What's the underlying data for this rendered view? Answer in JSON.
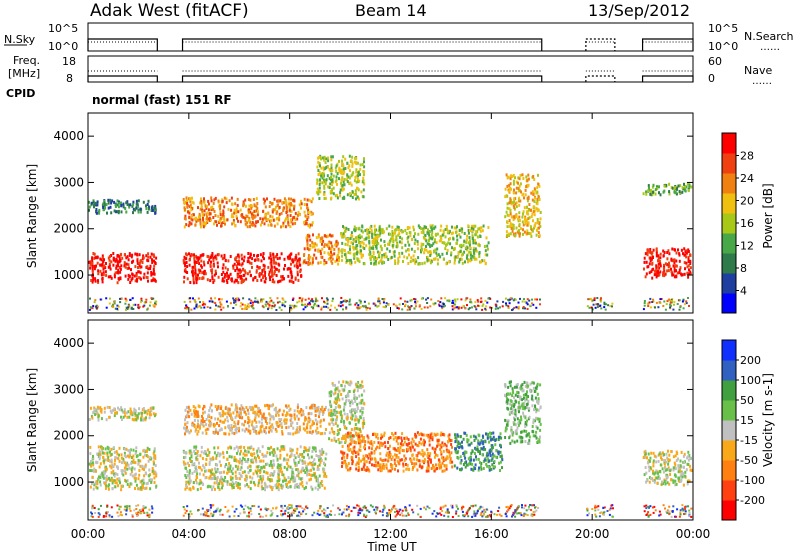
{
  "header": {
    "station": "Adak West (fitACF)",
    "beam": "Beam 14",
    "date": "13/Sep/2012",
    "mode": "normal (fast) 151 RF"
  },
  "chart_data": [
    {
      "type": "line",
      "id": "noise",
      "ylabel_left": "N.Sky",
      "ylabel_right": "N.Search",
      "ticks_left": [
        "10^5",
        "10^0"
      ],
      "ticks_right": [
        "10^5",
        "10^0"
      ],
      "legend_right": "……",
      "operating_intervals_ut": [
        [
          0.0,
          2.75
        ],
        [
          3.75,
          18.0
        ],
        [
          19.75,
          20.9
        ],
        [
          22.0,
          24.0
        ]
      ]
    },
    {
      "type": "line",
      "id": "freq-nave",
      "ylabel_left_lines": [
        "Freq.",
        "[MHz]"
      ],
      "ylabel_left_bottom": "CPID",
      "ylabel_right": "Nave",
      "ticks_left": [
        "18",
        "8"
      ],
      "ticks_right": [
        "60",
        "0"
      ],
      "legend_right": "……"
    },
    {
      "type": "heatmap",
      "id": "power",
      "ylabel": "Slant Range [km]",
      "yticks": [
        "4000",
        "3000",
        "2000",
        "1000"
      ],
      "yticks_values": [
        4000,
        3000,
        2000,
        1000
      ],
      "ylim": [
        180,
        4500
      ],
      "colorbar_label": "Power [dB]",
      "colorbar_ticks": [
        "28",
        "24",
        "20",
        "16",
        "12",
        "8",
        "4"
      ],
      "colorbar_colors": [
        "#0000ff",
        "#1e3fa0",
        "#2e7a4a",
        "#48a848",
        "#a8c818",
        "#f0c010",
        "#f08010",
        "#f04010",
        "#ff0000"
      ],
      "regions": [
        {
          "t": [
            0.0,
            2.75
          ],
          "r": [
            800,
            1500
          ],
          "level": 8
        },
        {
          "t": [
            0.0,
            2.75
          ],
          "r": [
            2300,
            2650
          ],
          "level": 2
        },
        {
          "t": [
            3.75,
            8.5
          ],
          "r": [
            800,
            1500
          ],
          "level": 8
        },
        {
          "t": [
            8.5,
            10.0
          ],
          "r": [
            1200,
            1900
          ],
          "level": 6
        },
        {
          "t": [
            3.75,
            9.0
          ],
          "r": [
            2000,
            2700
          ],
          "level": 6
        },
        {
          "t": [
            9.0,
            11.0
          ],
          "r": [
            2600,
            3600
          ],
          "level": 4
        },
        {
          "t": [
            10.0,
            16.0
          ],
          "r": [
            1200,
            2100
          ],
          "level": 4
        },
        {
          "t": [
            16.5,
            18.0
          ],
          "r": [
            1800,
            3200
          ],
          "level": 5
        },
        {
          "t": [
            22.0,
            24.0
          ],
          "r": [
            900,
            1600
          ],
          "level": 8
        },
        {
          "t": [
            22.0,
            24.0
          ],
          "r": [
            2700,
            3000
          ],
          "level": 3
        }
      ]
    },
    {
      "type": "heatmap",
      "id": "velocity",
      "ylabel": "Slant Range [km]",
      "yticks": [
        "4000",
        "3000",
        "2000",
        "1000"
      ],
      "yticks_values": [
        4000,
        3000,
        2000,
        1000
      ],
      "ylim": [
        180,
        4500
      ],
      "colorbar_label": "Velocity [m s-1]",
      "colorbar_ticks": [
        "200",
        "100",
        "50",
        "15",
        "-15",
        "-50",
        "-100",
        "-200"
      ],
      "colorbar_colors": [
        "#ff0000",
        "#ff4010",
        "#ff8010",
        "#f8a818",
        "#c0c0c0",
        "#68c048",
        "#40a040",
        "#3060c0",
        "#1030ff"
      ],
      "regions": [
        {
          "t": [
            0.0,
            2.75
          ],
          "r": [
            800,
            1800
          ],
          "level": 4
        },
        {
          "t": [
            0.0,
            2.75
          ],
          "r": [
            2300,
            2650
          ],
          "level": 4
        },
        {
          "t": [
            3.75,
            9.5
          ],
          "r": [
            800,
            1800
          ],
          "level": 4
        },
        {
          "t": [
            3.75,
            9.5
          ],
          "r": [
            2000,
            2700
          ],
          "level": 3
        },
        {
          "t": [
            9.5,
            11.0
          ],
          "r": [
            1800,
            3200
          ],
          "level": 4
        },
        {
          "t": [
            10.0,
            14.5
          ],
          "r": [
            1200,
            2100
          ],
          "level": 2
        },
        {
          "t": [
            14.5,
            16.5
          ],
          "r": [
            1200,
            2100
          ],
          "level": 6
        },
        {
          "t": [
            16.5,
            18.0
          ],
          "r": [
            1800,
            3200
          ],
          "level": 5
        },
        {
          "t": [
            22.0,
            24.0
          ],
          "r": [
            900,
            1700
          ],
          "level": 4
        }
      ]
    }
  ],
  "xaxis": {
    "label": "Time UT",
    "ticks": [
      "00:00",
      "04:00",
      "08:00",
      "12:00",
      "16:00",
      "20:00",
      "00:00"
    ],
    "range_hours": [
      0,
      24
    ]
  }
}
